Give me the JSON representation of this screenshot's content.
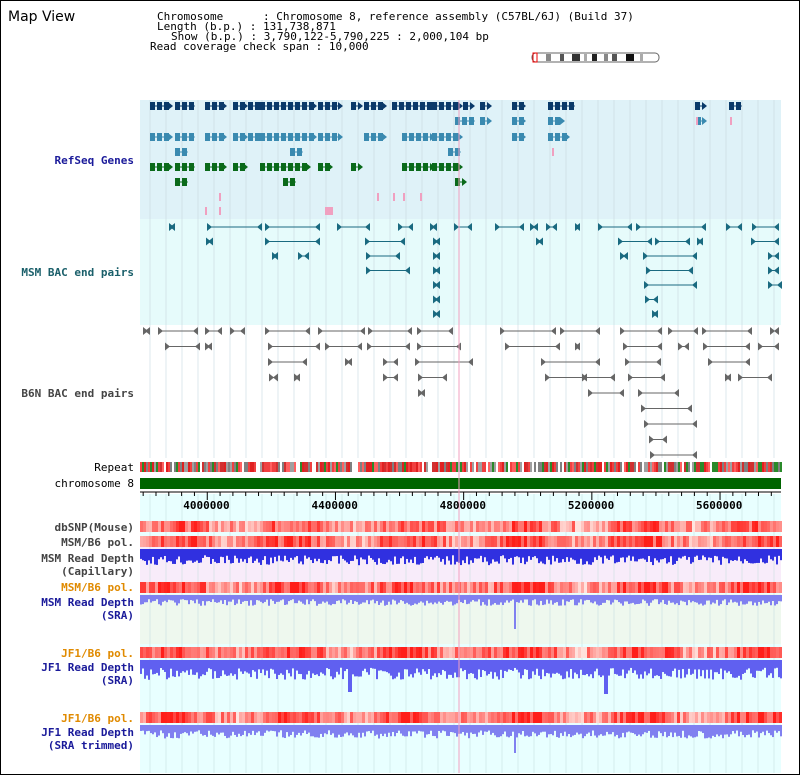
{
  "title": "Map View",
  "info": {
    "chromosome_key": "Chromosome",
    "chromosome_val": "Chromosome 8, reference assembly (C57BL/6J) (Build 37)",
    "length_key": "Length (b.p.)",
    "length_val": "131,738,871",
    "show_key": "Show (b.p.)",
    "show_val": "3,790,122-5,790,225 : 2,000,104 bp",
    "coverage_key": "Read coverage check span",
    "coverage_val": "10,000"
  },
  "tracks": {
    "refseq": "RefSeq Genes",
    "msm_bac": "MSM BAC end pairs",
    "b6n_bac": "B6N BAC end pairs",
    "repeat": "Repeat",
    "chromosome": "chromosome 8",
    "dbsnp": "dbSNP(Mouse)",
    "msm_b6_pol_1": "MSM/B6 pol.",
    "msm_depth_cap_1": "MSM Read Depth",
    "msm_depth_cap_2": "(Capillary)",
    "msm_b6_pol_2": "MSM/B6 pol.",
    "msm_depth_sra_1": "MSM Read Depth",
    "msm_depth_sra_2": "(SRA)",
    "jf1_b6_pol_1": "JF1/B6 pol.",
    "jf1_depth_sra_1": "JF1 Read Depth",
    "jf1_depth_sra_2": "(SRA)",
    "jf1_b6_pol_2": "JF1/B6 pol.",
    "jf1_depth_trim_1": "JF1 Read Depth",
    "jf1_depth_trim_2": "(SRA trimmed)"
  },
  "axis": {
    "ticks": [
      "4000000",
      "4400000",
      "4800000",
      "5200000",
      "5600000"
    ],
    "tick_values": [
      4000000,
      4400000,
      4800000,
      5200000,
      5600000
    ],
    "start": 3790122,
    "end": 5790225
  },
  "colors": {
    "refseq_bg": "#dff2f8",
    "msm_bg": "#e6fbfb",
    "navy_gene": "#0a3a6a",
    "teal_gene": "#3a8ab0",
    "green_gene": "#0a6a1a",
    "chrom_bar": "#006400",
    "depth_blue": "#2020e0",
    "depth_light": "#7070f0"
  }
}
